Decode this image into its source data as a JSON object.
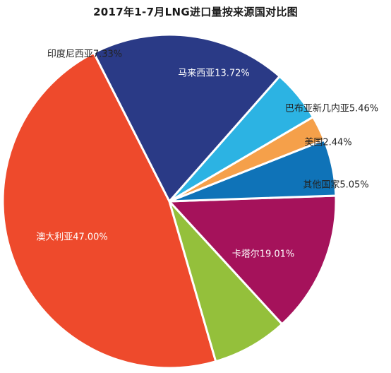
{
  "chart_data": {
    "type": "pie",
    "title": "2017年1-7月LNG进口量按来源国对比图",
    "slices": [
      {
        "label": "澳大利亚47.00%",
        "value": 47.0,
        "color": "#ee4a2c",
        "label_color": "#ffffff"
      },
      {
        "label": "印度尼西亚7.33%",
        "value": 7.33,
        "color": "#94c03b",
        "label_color": "#222222"
      },
      {
        "label": "马来西亚13.72%",
        "value": 13.72,
        "color": "#a5125b",
        "label_color": "#ffffff"
      },
      {
        "label": "巴布亚新几内亚5.46%",
        "value": 5.46,
        "color": "#0f73b8",
        "label_color": "#222222"
      },
      {
        "label": "美国2.44%",
        "value": 2.44,
        "color": "#f5a04a",
        "label_color": "#222222"
      },
      {
        "label": "其他国家5.05%",
        "value": 5.05,
        "color": "#2cb3e3",
        "label_color": "#222222"
      },
      {
        "label": "卡塔尔19.01%",
        "value": 19.01,
        "color": "#2a3a86",
        "label_color": "#ffffff"
      }
    ]
  }
}
